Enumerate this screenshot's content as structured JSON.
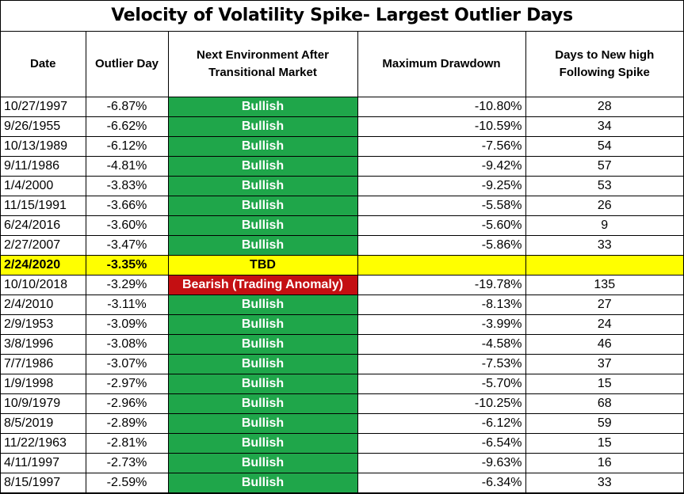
{
  "title": "Velocity of Volatility Spike- Largest Outlier Days",
  "headers": {
    "date": "Date",
    "outlier": "Outlier Day",
    "env": "Next Environment After Transitional Market",
    "drawdown": "Maximum Drawdown",
    "days": "Days to New high Following Spike"
  },
  "colors": {
    "bullish": "#1fa64a",
    "bearish": "#c40f12",
    "highlight": "#ffff00"
  },
  "rows": [
    {
      "date": "10/27/1997",
      "outlier": "-6.87%",
      "env": "Bullish",
      "drawdown": "-10.80%",
      "days": "28",
      "type": "bull"
    },
    {
      "date": "9/26/1955",
      "outlier": "-6.62%",
      "env": "Bullish",
      "drawdown": "-10.59%",
      "days": "34",
      "type": "bull"
    },
    {
      "date": "10/13/1989",
      "outlier": "-6.12%",
      "env": "Bullish",
      "drawdown": "-7.56%",
      "days": "54",
      "type": "bull"
    },
    {
      "date": "9/11/1986",
      "outlier": "-4.81%",
      "env": "Bullish",
      "drawdown": "-9.42%",
      "days": "57",
      "type": "bull"
    },
    {
      "date": "1/4/2000",
      "outlier": "-3.83%",
      "env": "Bullish",
      "drawdown": "-9.25%",
      "days": "53",
      "type": "bull"
    },
    {
      "date": "11/15/1991",
      "outlier": "-3.66%",
      "env": "Bullish",
      "drawdown": "-5.58%",
      "days": "26",
      "type": "bull"
    },
    {
      "date": "6/24/2016",
      "outlier": "-3.60%",
      "env": "Bullish",
      "drawdown": "-5.60%",
      "days": "9",
      "type": "bull"
    },
    {
      "date": "2/27/2007",
      "outlier": "-3.47%",
      "env": "Bullish",
      "drawdown": "-5.86%",
      "days": "33",
      "type": "bull"
    },
    {
      "date": "2/24/2020",
      "outlier": "-3.35%",
      "env": "TBD",
      "drawdown": "",
      "days": "",
      "type": "highlight"
    },
    {
      "date": "10/10/2018",
      "outlier": "-3.29%",
      "env": "Bearish (Trading Anomaly)",
      "drawdown": "-19.78%",
      "days": "135",
      "type": "bear"
    },
    {
      "date": "2/4/2010",
      "outlier": "-3.11%",
      "env": "Bullish",
      "drawdown": "-8.13%",
      "days": "27",
      "type": "bull"
    },
    {
      "date": "2/9/1953",
      "outlier": "-3.09%",
      "env": "Bullish",
      "drawdown": "-3.99%",
      "days": "24",
      "type": "bull"
    },
    {
      "date": "3/8/1996",
      "outlier": "-3.08%",
      "env": "Bullish",
      "drawdown": "-4.58%",
      "days": "46",
      "type": "bull"
    },
    {
      "date": "7/7/1986",
      "outlier": "-3.07%",
      "env": "Bullish",
      "drawdown": "-7.53%",
      "days": "37",
      "type": "bull"
    },
    {
      "date": "1/9/1998",
      "outlier": "-2.97%",
      "env": "Bullish",
      "drawdown": "-5.70%",
      "days": "15",
      "type": "bull"
    },
    {
      "date": "10/9/1979",
      "outlier": "-2.96%",
      "env": "Bullish",
      "drawdown": "-10.25%",
      "days": "68",
      "type": "bull"
    },
    {
      "date": "8/5/2019",
      "outlier": "-2.89%",
      "env": "Bullish",
      "drawdown": "-6.12%",
      "days": "59",
      "type": "bull"
    },
    {
      "date": "11/22/1963",
      "outlier": "-2.81%",
      "env": "Bullish",
      "drawdown": "-6.54%",
      "days": "15",
      "type": "bull"
    },
    {
      "date": "4/11/1997",
      "outlier": "-2.73%",
      "env": "Bullish",
      "drawdown": "-9.63%",
      "days": "16",
      "type": "bull"
    },
    {
      "date": "8/15/1997",
      "outlier": "-2.59%",
      "env": "Bullish",
      "drawdown": "-6.34%",
      "days": "33",
      "type": "bull"
    }
  ]
}
